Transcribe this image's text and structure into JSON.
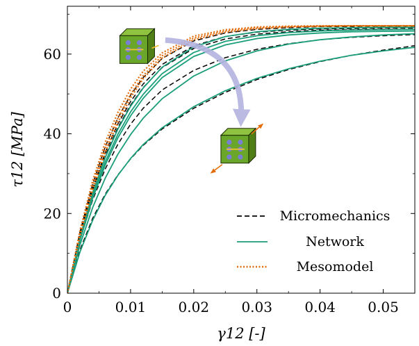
{
  "chart_data": {
    "type": "line",
    "xlabel": "γ12 [-]",
    "ylabel": "τ12 [MPa]",
    "xlim": [
      0,
      0.055
    ],
    "ylim": [
      0,
      72
    ],
    "x_ticks": [
      0,
      0.01,
      0.02,
      0.03,
      0.04,
      0.05
    ],
    "x_tick_labels": [
      "0",
      "0.01",
      "0.02",
      "0.03",
      "0.04",
      "0.05"
    ],
    "y_ticks": [
      0,
      20,
      40,
      60
    ],
    "y_tick_labels": [
      "0",
      "20",
      "40",
      "60"
    ],
    "grid": false,
    "legend": {
      "placement": "bottom-right",
      "entries": [
        {
          "name": "Micromechanics",
          "style": "dashed",
          "color": "#000000"
        },
        {
          "name": "Network",
          "style": "solid",
          "color": "#1a9e7a"
        },
        {
          "name": "Mesomodel",
          "style": "dotted",
          "color": "#e36c0a"
        }
      ]
    },
    "series": [
      {
        "name": "Micromechanics",
        "color": "#000000",
        "curves": [
          {
            "x": [
              0,
              0.002,
              0.004,
              0.006,
              0.008,
              0.01,
              0.012,
              0.015,
              0.02,
              0.025,
              0.03,
              0.035,
              0.04,
              0.045,
              0.05,
              0.055
            ],
            "y": [
              0,
              15.4,
              27.4,
              36.8,
              44.0,
              49.7,
              54.1,
              58.9,
              63.3,
              65.3,
              66.2,
              66.6,
              66.9,
              66.9,
              67.0,
              67.0
            ]
          },
          {
            "x": [
              0,
              0.002,
              0.004,
              0.006,
              0.008,
              0.01,
              0.012,
              0.015,
              0.02,
              0.025,
              0.03,
              0.035,
              0.04,
              0.045,
              0.05,
              0.055
            ],
            "y": [
              0,
              14.8,
              26.3,
              35.4,
              42.5,
              48.1,
              52.5,
              57.4,
              62.1,
              64.4,
              65.5,
              66.0,
              66.3,
              66.4,
              66.5,
              66.5
            ]
          },
          {
            "x": [
              0,
              0.002,
              0.004,
              0.006,
              0.008,
              0.01,
              0.012,
              0.015,
              0.02,
              0.025,
              0.03,
              0.035,
              0.04,
              0.045,
              0.05,
              0.055
            ],
            "y": [
              0,
              14.4,
              25.7,
              34.6,
              41.6,
              47.2,
              51.6,
              56.6,
              61.4,
              63.8,
              65.0,
              65.6,
              66.0,
              66.1,
              66.2,
              66.2
            ]
          },
          {
            "x": [
              0,
              0.002,
              0.004,
              0.006,
              0.008,
              0.01,
              0.012,
              0.015,
              0.02,
              0.025,
              0.03,
              0.035,
              0.04,
              0.045,
              0.05,
              0.055
            ],
            "y": [
              0,
              13.4,
              23.4,
              31.2,
              37.4,
              42.4,
              46.4,
              51.0,
              55.9,
              59.1,
              61.2,
              62.6,
              63.6,
              64.2,
              64.6,
              64.9
            ]
          },
          {
            "x": [
              0,
              0.002,
              0.004,
              0.006,
              0.008,
              0.01,
              0.012,
              0.015,
              0.02,
              0.025,
              0.03,
              0.035,
              0.04,
              0.045,
              0.05,
              0.055
            ],
            "y": [
              0,
              10.9,
              18.8,
              24.9,
              29.7,
              33.7,
              37.1,
              41.2,
              46.4,
              50.4,
              53.6,
              56.1,
              58.1,
              59.7,
              61.0,
              62.1
            ]
          }
        ]
      },
      {
        "name": "Network",
        "color": "#1a9e7a",
        "curves": [
          {
            "x": [
              0,
              0.002,
              0.004,
              0.006,
              0.008,
              0.01,
              0.012,
              0.015,
              0.02,
              0.025,
              0.03,
              0.035,
              0.04,
              0.045,
              0.05,
              0.055
            ],
            "y": [
              0,
              14.0,
              25.2,
              34.1,
              41.2,
              46.9,
              51.5,
              56.7,
              61.8,
              64.4,
              65.6,
              66.2,
              66.5,
              66.6,
              66.7,
              66.7
            ]
          },
          {
            "x": [
              0,
              0.002,
              0.004,
              0.006,
              0.008,
              0.01,
              0.012,
              0.015,
              0.02,
              0.025,
              0.03,
              0.035,
              0.04,
              0.045,
              0.05,
              0.055
            ],
            "y": [
              0,
              13.6,
              24.4,
              33.0,
              39.9,
              45.5,
              49.9,
              55.1,
              60.4,
              63.2,
              64.6,
              65.4,
              65.8,
              66.0,
              66.1,
              66.2
            ]
          },
          {
            "x": [
              0,
              0.002,
              0.004,
              0.006,
              0.008,
              0.01,
              0.012,
              0.015,
              0.02,
              0.025,
              0.03,
              0.035,
              0.04,
              0.045,
              0.05,
              0.055
            ],
            "y": [
              0,
              13.3,
              23.8,
              32.2,
              39.0,
              44.5,
              48.9,
              54.1,
              59.4,
              62.3,
              63.9,
              64.8,
              65.3,
              65.6,
              65.7,
              65.8
            ]
          },
          {
            "x": [
              0,
              0.002,
              0.004,
              0.006,
              0.008,
              0.01,
              0.012,
              0.015,
              0.02,
              0.025,
              0.03,
              0.035,
              0.04,
              0.045,
              0.05,
              0.055
            ],
            "y": [
              0,
              12.2,
              21.5,
              28.9,
              34.9,
              39.8,
              43.9,
              48.8,
              54.5,
              58.3,
              60.8,
              62.5,
              63.6,
              64.3,
              64.8,
              65.1
            ]
          },
          {
            "x": [
              0,
              0.002,
              0.004,
              0.006,
              0.008,
              0.01,
              0.012,
              0.015,
              0.02,
              0.025,
              0.03,
              0.035,
              0.04,
              0.045,
              0.05,
              0.055
            ],
            "y": [
              0,
              10.4,
              18.3,
              24.6,
              29.6,
              33.8,
              37.3,
              41.5,
              46.8,
              50.8,
              53.9,
              56.3,
              58.2,
              59.7,
              60.8,
              61.7
            ]
          }
        ]
      },
      {
        "name": "Mesomodel",
        "color": "#e36c0a",
        "curves": [
          {
            "x": [
              0,
              0.002,
              0.004,
              0.006,
              0.008,
              0.01,
              0.012,
              0.015,
              0.02,
              0.025,
              0.03,
              0.035,
              0.04,
              0.045,
              0.05,
              0.055
            ],
            "y": [
              0,
              15.8,
              28.2,
              37.9,
              45.4,
              51.2,
              55.7,
              60.3,
              64.5,
              66.1,
              66.8,
              67.0,
              67.1,
              67.1,
              67.1,
              67.1
            ]
          },
          {
            "x": [
              0,
              0.002,
              0.004,
              0.006,
              0.008,
              0.01,
              0.012,
              0.015,
              0.02,
              0.025,
              0.03,
              0.035,
              0.04,
              0.045,
              0.05,
              0.055
            ],
            "y": [
              0,
              14.3,
              25.9,
              35.3,
              42.9,
              49.0,
              53.8,
              59.0,
              63.6,
              65.5,
              66.4,
              66.8,
              67.0,
              67.1,
              67.1,
              67.1
            ]
          },
          {
            "x": [
              0,
              0.002,
              0.004,
              0.006,
              0.008,
              0.01,
              0.012,
              0.015,
              0.02,
              0.025,
              0.03,
              0.035,
              0.04,
              0.045,
              0.05,
              0.055
            ],
            "y": [
              0,
              15.0,
              27.0,
              36.5,
              44.0,
              49.9,
              54.6,
              59.6,
              64.0,
              65.8,
              66.6,
              66.9,
              67.0,
              67.1,
              67.1,
              67.1
            ]
          }
        ]
      }
    ],
    "annotations": [
      {
        "kind": "arrow",
        "color": "#b3b3e0",
        "from": {
          "x": 0.0155,
          "y": 63.5
        },
        "to": {
          "x": 0.0275,
          "y": 43.5
        }
      },
      {
        "kind": "icon",
        "name": "unloaded-cube-icon",
        "at": {
          "x": 0.0105,
          "y": 62
        }
      },
      {
        "kind": "icon",
        "name": "sheared-cube-icon",
        "at": {
          "x": 0.0265,
          "y": 37
        }
      }
    ]
  }
}
